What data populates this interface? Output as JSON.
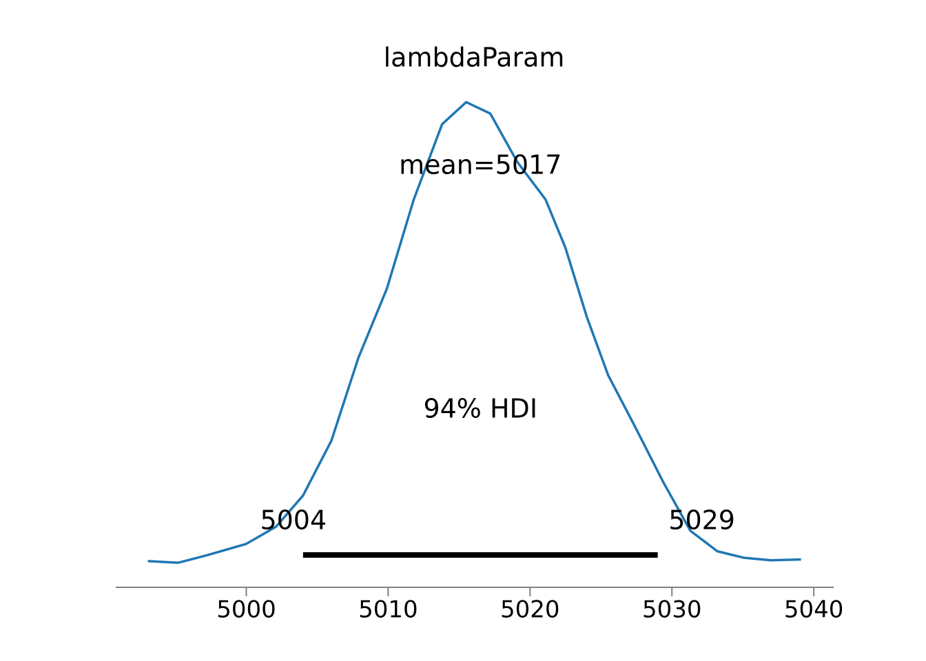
{
  "chart_data": {
    "type": "density",
    "title": "lambdaParam",
    "x": [
      4993.06,
      4995.2,
      4997.2,
      5000,
      5002.1,
      5004,
      5006,
      5007.9,
      5009.9,
      5011.8,
      5013.8,
      5015.5,
      5017.2,
      5019.1,
      5021.1,
      5022.5,
      5024,
      5025.5,
      5027.4,
      5029.4,
      5031.3,
      5033.2,
      5035.1,
      5037,
      5039.1
    ],
    "values": [
      0.0002,
      0,
      0.0009,
      0.0023,
      0.0044,
      0.0082,
      0.0149,
      0.025,
      0.0334,
      0.0443,
      0.0535,
      0.0562,
      0.0548,
      0.0489,
      0.0443,
      0.0384,
      0.03,
      0.0229,
      0.0166,
      0.0098,
      0.0039,
      0.0014,
      0.0006,
      0.0003,
      0.0004
    ],
    "color": "#1f77b4",
    "mean": 5016.5,
    "mean_label": "mean=5017",
    "hdi": [
      5004,
      5029
    ],
    "hdi_label": "94% HDI",
    "xlim": [
      4990.8,
      5041.4
    ],
    "xticks": [
      5000,
      5010,
      5020,
      5030,
      5040
    ],
    "ylim": [
      -0.003,
      0.059
    ]
  }
}
